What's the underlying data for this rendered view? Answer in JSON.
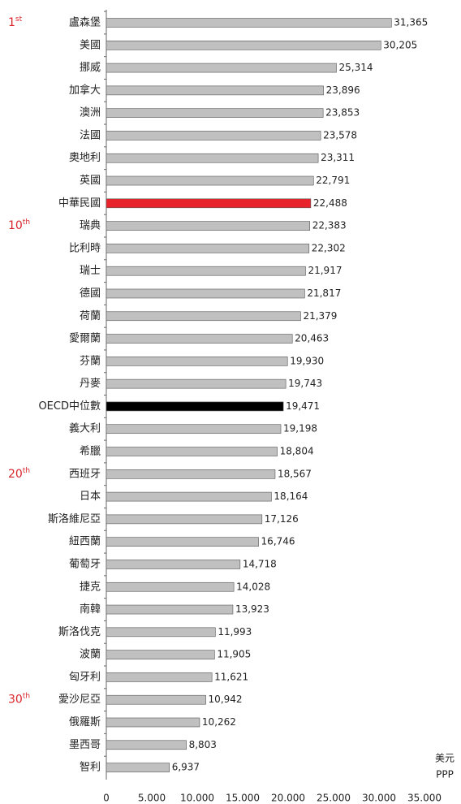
{
  "chart_data": {
    "type": "bar",
    "orientation": "horizontal",
    "categories": [
      "盧森堡",
      "美國",
      "挪威",
      "加拿大",
      "澳洲",
      "法國",
      "奧地利",
      "英國",
      "中華民國",
      "瑞典",
      "比利時",
      "瑞士",
      "德國",
      "荷蘭",
      "愛爾蘭",
      "芬蘭",
      "丹麥",
      "OECD中位數",
      "義大利",
      "希臘",
      "西班牙",
      "日本",
      "斯洛維尼亞",
      "紐西蘭",
      "葡萄牙",
      "捷克",
      "南韓",
      "斯洛伐克",
      "波蘭",
      "匈牙利",
      "愛沙尼亞",
      "俄羅斯",
      "墨西哥",
      "智利"
    ],
    "values": [
      31365,
      30205,
      25314,
      23896,
      23853,
      23578,
      23311,
      22791,
      22488,
      22383,
      22302,
      21917,
      21817,
      21379,
      20463,
      19930,
      19743,
      19471,
      19198,
      18804,
      18567,
      18164,
      17126,
      16746,
      14718,
      14028,
      13923,
      11993,
      11905,
      11621,
      10942,
      10262,
      8803,
      6937
    ],
    "value_labels": [
      "31,365",
      "30,205",
      "25,314",
      "23,896",
      "23,853",
      "23,578",
      "23,311",
      "22,791",
      "22,488",
      "22,383",
      "22,302",
      "21,917",
      "21,817",
      "21,379",
      "20,463",
      "19,930",
      "19,743",
      "19,471",
      "19,198",
      "18,804",
      "18,567",
      "18,164",
      "17,126",
      "16,746",
      "14,718",
      "14,028",
      "13,923",
      "11,993",
      "11,905",
      "11,621",
      "10,942",
      "10,262",
      "8,803",
      "6,937"
    ],
    "colors": [
      "#c0c0c0",
      "#c0c0c0",
      "#c0c0c0",
      "#c0c0c0",
      "#c0c0c0",
      "#c0c0c0",
      "#c0c0c0",
      "#c0c0c0",
      "#e8232b",
      "#c0c0c0",
      "#c0c0c0",
      "#c0c0c0",
      "#c0c0c0",
      "#c0c0c0",
      "#c0c0c0",
      "#c0c0c0",
      "#c0c0c0",
      "#000000",
      "#c0c0c0",
      "#c0c0c0",
      "#c0c0c0",
      "#c0c0c0",
      "#c0c0c0",
      "#c0c0c0",
      "#c0c0c0",
      "#c0c0c0",
      "#c0c0c0",
      "#c0c0c0",
      "#c0c0c0",
      "#c0c0c0",
      "#c0c0c0",
      "#c0c0c0",
      "#c0c0c0",
      "#c0c0c0"
    ],
    "unranked_color": "#000000",
    "xlim": [
      0,
      35000
    ],
    "xticks": [
      0,
      {
        "value": 5000,
        "label": "5.000"
      },
      {
        "value": 10000,
        "label": "10.000"
      },
      {
        "value": 15000,
        "label": "15.000"
      },
      {
        "value": 20000,
        "label": "20.000"
      },
      {
        "value": 25000,
        "label": "25.000"
      },
      {
        "value": 30000,
        "label": "30.000"
      },
      {
        "value": 35000,
        "label": "35.000"
      }
    ],
    "x_label": [
      "美元",
      "PPP"
    ],
    "rank_labels": [
      {
        "rank": 1,
        "suffix": "st"
      },
      {
        "rank": 10,
        "suffix": "th"
      },
      {
        "rank": 20,
        "suffix": "th"
      },
      {
        "rank": 30,
        "suffix": "th"
      }
    ]
  }
}
